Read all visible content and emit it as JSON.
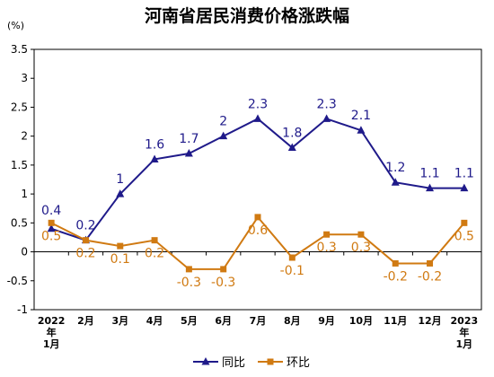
{
  "chart_data": {
    "type": "line",
    "title": "河南省居民消费价格涨跌幅",
    "unit_label": "(%)",
    "categories": [
      [
        "2022",
        "年",
        "1月"
      ],
      [
        "2月"
      ],
      [
        "3月"
      ],
      [
        "4月"
      ],
      [
        "5月"
      ],
      [
        "6月"
      ],
      [
        "7月"
      ],
      [
        "8月"
      ],
      [
        "9月"
      ],
      [
        "10月"
      ],
      [
        "11月"
      ],
      [
        "12月"
      ],
      [
        "2023",
        "年",
        "1月"
      ]
    ],
    "ylim": [
      -1,
      3.5
    ],
    "yticks": [
      -1,
      -0.5,
      0,
      0.5,
      1,
      1.5,
      2,
      2.5,
      3,
      3.5
    ],
    "ytick_labels": [
      "-1",
      "-0.5",
      "0",
      "0.5",
      "1",
      "1.5",
      "2",
      "2.5",
      "3",
      "3.5"
    ],
    "grid": false,
    "legend_position": "bottom",
    "series": [
      {
        "name": "同比",
        "color": "#1f1a8a",
        "marker": "triangle",
        "values": [
          0.4,
          0.2,
          1,
          1.6,
          1.7,
          2,
          2.3,
          1.8,
          2.3,
          2.1,
          1.2,
          1.1,
          1.1
        ],
        "labels": [
          "0.4",
          "0.2",
          "1",
          "1.6",
          "1.7",
          "2",
          "2.3",
          "1.8",
          "2.3",
          "2.1",
          "1.2",
          "1.1",
          "1.1"
        ]
      },
      {
        "name": "环比",
        "color": "#d07a12",
        "marker": "square",
        "values": [
          0.5,
          0.2,
          0.1,
          0.2,
          -0.3,
          -0.3,
          0.6,
          -0.1,
          0.3,
          0.3,
          -0.2,
          -0.2,
          0.5
        ],
        "labels": [
          "0.5",
          "0.2",
          "0.1",
          "0.2",
          "-0.3",
          "-0.3",
          "0.6",
          "-0.1",
          "0.3",
          "0.3",
          "-0.2",
          "-0.2",
          "0.5"
        ]
      }
    ]
  }
}
